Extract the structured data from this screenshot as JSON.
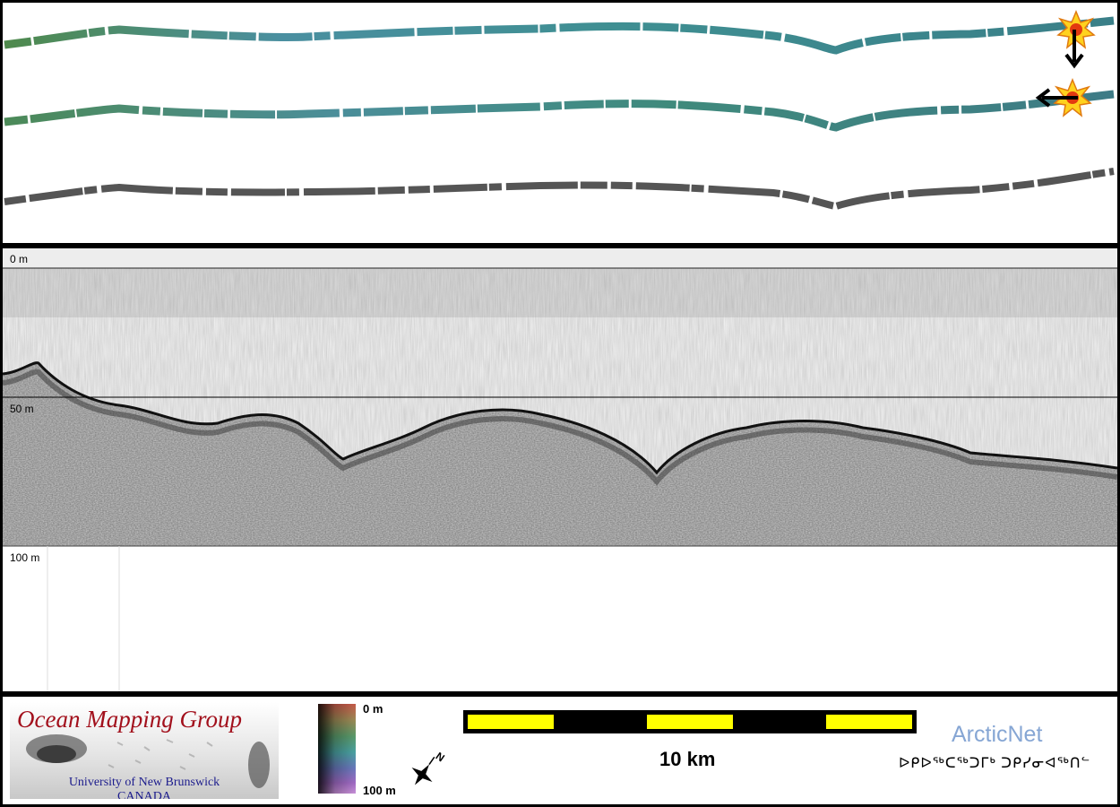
{
  "profile": {
    "depth_scale": {
      "label_top": "0 m",
      "label_mid": "50 m",
      "label_bottom": "100 m"
    }
  },
  "legend": {
    "logo": {
      "title": "Ocean Mapping Group",
      "university": "University of New Brunswick",
      "country": "CANADA"
    },
    "color_scale": {
      "min_label": "0 m",
      "max_label": "100 m"
    },
    "north_arrow": {
      "label": "N",
      "icon": "compass-star-icon"
    },
    "scale_bar": {
      "label": "10 km",
      "segment_color": "#ffff00"
    },
    "partner": {
      "name": "ArcticNet",
      "syllabics": "ᐅᑭᐅᖅᑕᖅᑐᒥᒃ ᑐᑭᓯᓂᐊᖅᑎᓪ"
    }
  },
  "colors": {
    "arcticnet": "#86a6d4",
    "omg_title": "#a2101c",
    "omg_text": "#1b1b8c"
  }
}
